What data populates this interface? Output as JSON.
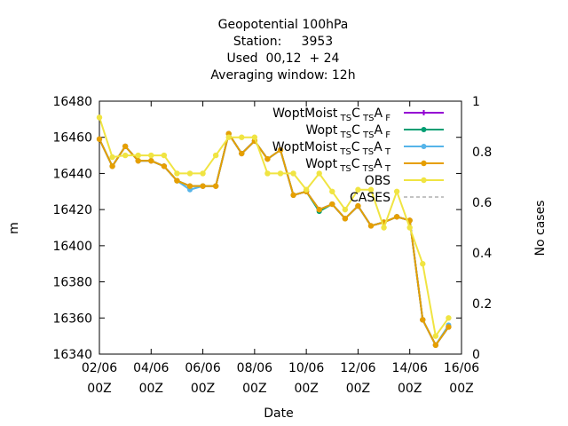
{
  "chart_data": {
    "type": "line",
    "title_lines": [
      "Geopotential 100hPa",
      "Station:     3953",
      "Used  00,12  + 24",
      "Averaging window: 12h"
    ],
    "xlabel": "Date",
    "ylabel": "m",
    "y2label": "No cases",
    "ylim": [
      16340,
      16480
    ],
    "y2lim": [
      0,
      1
    ],
    "xlim": [
      "02/06 00Z",
      "16/06 00Z"
    ],
    "grid": false,
    "legend_position": "top-right",
    "x_ticks": [
      {
        "line1": "02/06",
        "line2": "00Z",
        "day": 2
      },
      {
        "line1": "04/06",
        "line2": "00Z",
        "day": 4
      },
      {
        "line1": "06/06",
        "line2": "00Z",
        "day": 6
      },
      {
        "line1": "08/06",
        "line2": "00Z",
        "day": 8
      },
      {
        "line1": "10/06",
        "line2": "00Z",
        "day": 10
      },
      {
        "line1": "12/06",
        "line2": "00Z",
        "day": 12
      },
      {
        "line1": "14/06",
        "line2": "00Z",
        "day": 14
      },
      {
        "line1": "16/06",
        "line2": "00Z",
        "day": 16
      }
    ],
    "y_ticks": [
      16340,
      16360,
      16380,
      16400,
      16420,
      16440,
      16460,
      16480
    ],
    "y2_ticks": [
      {
        "value": 0,
        "label": "0"
      },
      {
        "value": 0.2,
        "label": "0.2"
      },
      {
        "value": 0.4,
        "label": "0.4"
      },
      {
        "value": 0.6,
        "label": "0.6"
      },
      {
        "value": 0.8,
        "label": "0.8"
      },
      {
        "value": 1,
        "label": "1"
      }
    ],
    "x_days": [
      2,
      2.5,
      3,
      3.5,
      4,
      4.5,
      5,
      5.5,
      6,
      6.5,
      7,
      7.5,
      8,
      8.5,
      9,
      9.5,
      10,
      10.5,
      11,
      11.5,
      12,
      12.5,
      13,
      13.5,
      14,
      14.5,
      15,
      15.5
    ],
    "series": [
      {
        "name": "WoptMoist",
        "legend_base": "WoptMoist",
        "legend_sub": "TS",
        "legend_mid": "C",
        "legend_sub2": "TS",
        "legend_mid2": "A",
        "legend_sub3": "F",
        "color": "#9400d3",
        "marker": "plus",
        "values": [
          16459,
          16444,
          16455,
          16447,
          16447,
          16444,
          16436,
          16433,
          16433,
          16433,
          16462,
          16451,
          16458,
          16448,
          16453,
          16428,
          16430,
          16420,
          16423,
          16415,
          16422,
          16411,
          16413,
          16416,
          16414,
          16359,
          16345,
          16355
        ]
      },
      {
        "name": "Wopt (F)",
        "legend_base": "Wopt",
        "legend_sub": "TS",
        "legend_mid": "C",
        "legend_sub2": "TS",
        "legend_mid2": "A",
        "legend_sub3": "F",
        "color": "#009e73",
        "marker": "star",
        "values": [
          16459,
          16444,
          16455,
          16447,
          16447,
          16444,
          16436,
          16433,
          16433,
          16433,
          16462,
          16451,
          16458,
          16448,
          16453,
          16428,
          16430,
          16419,
          16423,
          16415,
          16422,
          16411,
          16413,
          16416,
          16414,
          16359,
          16345,
          16355
        ]
      },
      {
        "name": "WoptMoist (T)",
        "legend_base": "WoptMoist",
        "legend_sub": "TS",
        "legend_mid": "C",
        "legend_sub2": "TS",
        "legend_mid2": "A",
        "legend_sub3": "T",
        "color": "#56b4e9",
        "marker": "star",
        "values": [
          16459,
          16444,
          16455,
          16447,
          16447,
          16444,
          16436,
          16431,
          16433,
          16433,
          16462,
          16451,
          16458,
          16448,
          16453,
          16428,
          16430,
          16420,
          16423,
          16415,
          16422,
          16411,
          16413,
          16416,
          16414,
          16359,
          16345,
          16356
        ]
      },
      {
        "name": "Wopt (T)",
        "legend_base": "Wopt",
        "legend_sub": "TS",
        "legend_mid": "C",
        "legend_sub2": "TS",
        "legend_mid2": "A",
        "legend_sub3": "T",
        "color": "#e69f00",
        "marker": "dot",
        "values": [
          16459,
          16444,
          16455,
          16447,
          16447,
          16444,
          16436,
          16433,
          16433,
          16433,
          16462,
          16451,
          16458,
          16448,
          16453,
          16428,
          16430,
          16420,
          16423,
          16415,
          16422,
          16411,
          16413,
          16416,
          16414,
          16359,
          16345,
          16355
        ]
      },
      {
        "name": "OBS",
        "legend_base": "OBS",
        "color": "#f0e442",
        "marker": "dot",
        "values": [
          16471,
          16449,
          16450,
          16450,
          16450,
          16450,
          16440,
          16440,
          16440,
          16450,
          16460,
          16460,
          16460,
          16440,
          16440,
          16440,
          16431,
          16440,
          16430,
          16420,
          16431,
          16431,
          16410,
          16430,
          16410,
          16390,
          16350,
          16360
        ]
      }
    ],
    "cases": {
      "name": "CASES",
      "color": "#a0a0a0",
      "dash": true,
      "values": []
    }
  }
}
